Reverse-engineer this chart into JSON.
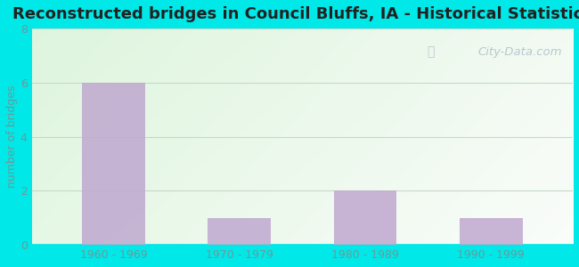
{
  "title": "Reconstructed bridges in Council Bluffs, IA - Historical Statistics",
  "categories": [
    "1960 - 1969",
    "1970 - 1979",
    "1980 - 1989",
    "1990 - 1999"
  ],
  "values": [
    6,
    1,
    2,
    1
  ],
  "bar_color": "#c0a8d0",
  "ylabel": "number of bridges",
  "ylim": [
    0,
    8
  ],
  "yticks": [
    0,
    2,
    4,
    6,
    8
  ],
  "background_outer": "#00e8e8",
  "title_fontsize": 13,
  "axis_label_fontsize": 9,
  "tick_fontsize": 9,
  "bar_width": 0.5,
  "watermark_text": "City-Data.com",
  "watermark_color": "#b8c8d0",
  "grid_color": "#c8d8c8",
  "tick_color": "#6a9a9a",
  "title_color": "#222222"
}
